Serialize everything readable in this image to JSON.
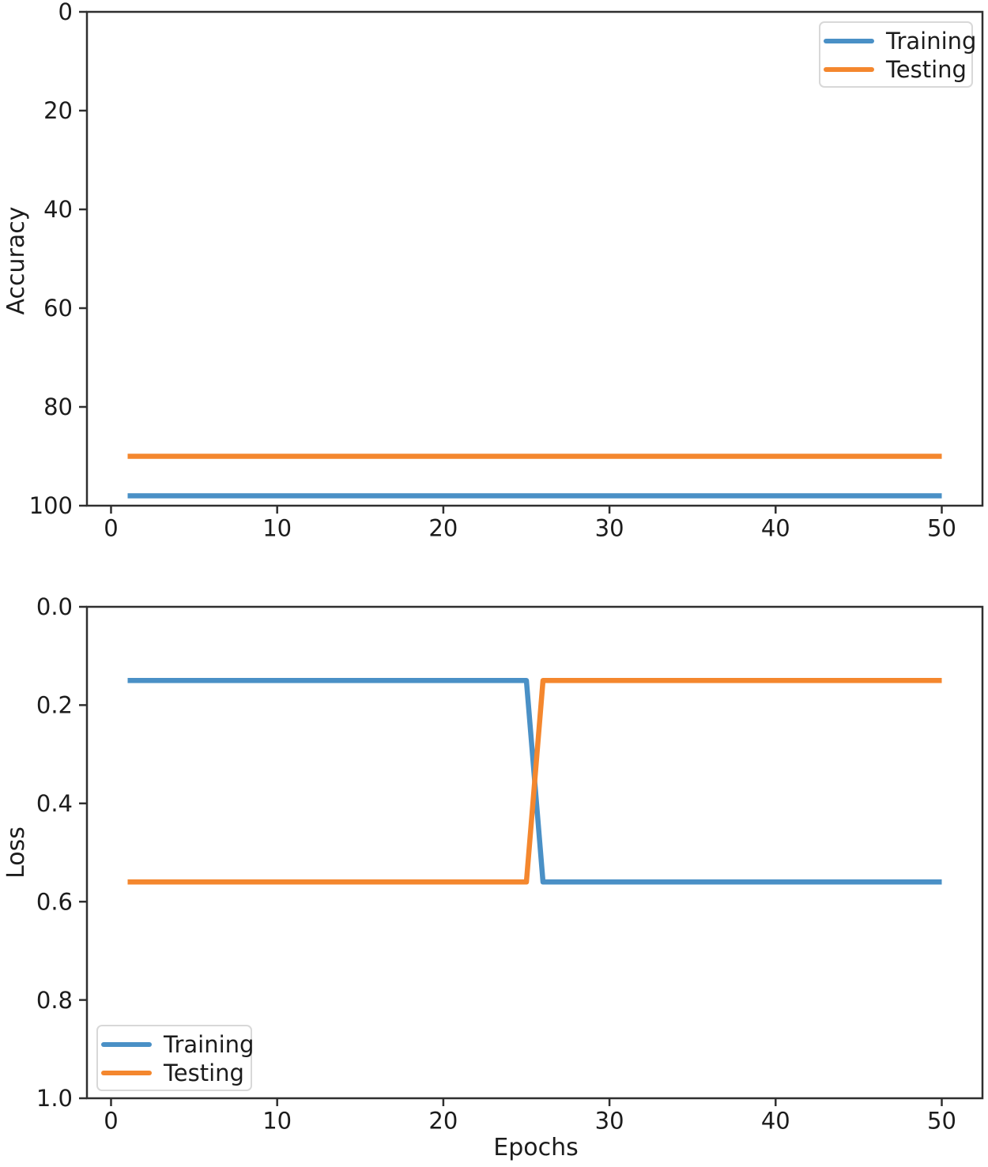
{
  "figure": {
    "background": "#ffffff"
  },
  "colors": {
    "training": "#4A90C6",
    "testing": "#F4872E",
    "axis": "#2F2F2F",
    "text": "#1C1C1C",
    "legend_border": "#D8D8D8",
    "legend_background": "#ffffff"
  },
  "chart_data": [
    {
      "id": "accuracy",
      "type": "line",
      "title": "",
      "xlabel": "",
      "ylabel": "Accuracy",
      "xlim": [
        -1.45,
        52.45
      ],
      "ylim": [
        0,
        100
      ],
      "y_axis_direction": "inverted",
      "grid": false,
      "xticks": [
        0,
        10,
        20,
        30,
        40,
        50
      ],
      "xtick_labels": [
        "0",
        "10",
        "20",
        "30",
        "40",
        "50"
      ],
      "yticks": [
        0,
        20,
        40,
        60,
        80,
        100
      ],
      "ytick_labels": [
        "0",
        "20",
        "40",
        "60",
        "80",
        "100"
      ],
      "legend": {
        "position": "upper right",
        "entries": [
          "Training",
          "Testing"
        ]
      },
      "series": [
        {
          "name": "Training",
          "color": "#4A90C6",
          "x": [
            1,
            50
          ],
          "y": [
            98,
            98
          ]
        },
        {
          "name": "Testing",
          "color": "#F4872E",
          "x": [
            1,
            50
          ],
          "y": [
            90,
            90
          ]
        }
      ]
    },
    {
      "id": "loss",
      "type": "line",
      "title": "",
      "xlabel": "Epochs",
      "ylabel": "Loss",
      "xlim": [
        -1.45,
        52.45
      ],
      "ylim": [
        0,
        1.0
      ],
      "y_axis_direction": "inverted",
      "grid": false,
      "xticks": [
        0,
        10,
        20,
        30,
        40,
        50
      ],
      "xtick_labels": [
        "0",
        "10",
        "20",
        "30",
        "40",
        "50"
      ],
      "yticks": [
        0,
        0.2,
        0.4,
        0.6,
        0.8,
        1.0
      ],
      "ytick_labels": [
        "0.0",
        "0.2",
        "0.4",
        "0.6",
        "0.8",
        "1.0"
      ],
      "legend": {
        "position": "lower left",
        "entries": [
          "Training",
          "Testing"
        ]
      },
      "series": [
        {
          "name": "Training",
          "color": "#4A90C6",
          "x": [
            1,
            25,
            26,
            50
          ],
          "y": [
            0.15,
            0.15,
            0.56,
            0.56
          ]
        },
        {
          "name": "Testing",
          "color": "#F4872E",
          "x": [
            1,
            25,
            26,
            50
          ],
          "y": [
            0.56,
            0.56,
            0.15,
            0.15
          ]
        }
      ]
    }
  ]
}
